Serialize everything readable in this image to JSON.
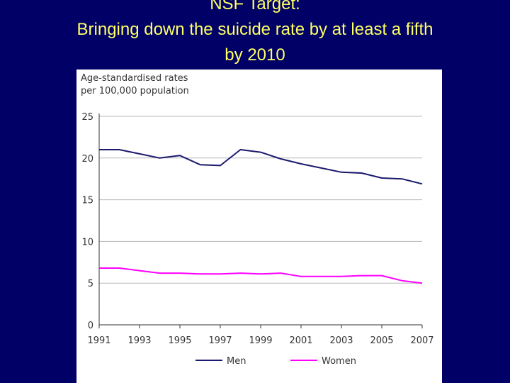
{
  "slide": {
    "title_line1": "NSF Target:",
    "title_line2": "Bringing down the suicide rate by at least a fifth",
    "title_line3": "by 2010",
    "title_color": "#ffff66",
    "background_color": "#000066"
  },
  "chart_data": {
    "type": "line",
    "ylabel_line1": "Age-standardised rates",
    "ylabel_line2": "per 100,000 population",
    "ylim": [
      0,
      25
    ],
    "yticks": [
      0,
      5,
      10,
      15,
      20,
      25
    ],
    "xlim": [
      1991,
      2007
    ],
    "xticks": [
      1991,
      1993,
      1995,
      1997,
      1999,
      2001,
      2003,
      2005,
      2007
    ],
    "grid": true,
    "legend_position": "bottom",
    "series": [
      {
        "name": "Men",
        "color": "#1a1a6e",
        "x": [
          1991,
          1992,
          1993,
          1994,
          1995,
          1996,
          1997,
          1998,
          1999,
          2000,
          2001,
          2002,
          2003,
          2004,
          2005,
          2006,
          2007
        ],
        "values": [
          21.0,
          21.0,
          20.5,
          20.0,
          20.3,
          19.2,
          19.1,
          21.0,
          20.7,
          19.9,
          19.3,
          18.8,
          18.3,
          18.2,
          17.6,
          17.5,
          16.9
        ]
      },
      {
        "name": "Women",
        "color": "#ff00ff",
        "x": [
          1991,
          1992,
          1993,
          1994,
          1995,
          1996,
          1997,
          1998,
          1999,
          2000,
          2001,
          2002,
          2003,
          2004,
          2005,
          2006,
          2007
        ],
        "values": [
          6.8,
          6.8,
          6.5,
          6.2,
          6.2,
          6.1,
          6.1,
          6.2,
          6.1,
          6.2,
          5.8,
          5.8,
          5.8,
          5.9,
          5.9,
          5.3,
          5.0
        ]
      }
    ]
  }
}
